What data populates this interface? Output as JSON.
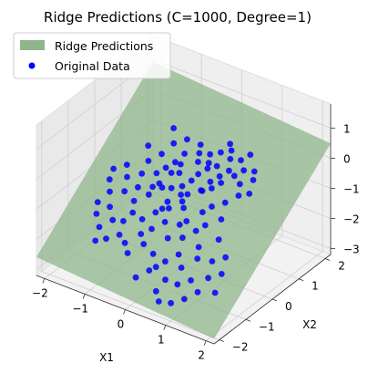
{
  "chart_data": {
    "type": "scatter",
    "title": "Ridge Predictions (C=1000, Degree=1)",
    "xlabel": "X1",
    "ylabel": "X2",
    "zlabel": "",
    "xlim": [
      -2.2,
      2.2
    ],
    "ylim": [
      -2.2,
      2.2
    ],
    "zlim": [
      -3.2,
      1.8
    ],
    "xticks": [
      -2,
      -1,
      0,
      1,
      2
    ],
    "yticks": [
      -2,
      -1,
      0,
      1,
      2
    ],
    "zticks": [
      -3,
      -2,
      -1,
      0,
      1
    ],
    "xtick_labels": [
      "−2",
      "−1",
      "0",
      "1",
      "2"
    ],
    "ytick_labels": [
      "−2",
      "−1",
      "0",
      "1",
      "2"
    ],
    "ztick_labels": [
      "−3",
      "−2",
      "−1",
      "0",
      "1"
    ],
    "grid": true,
    "legend_position": "top-left",
    "legend": [
      {
        "label": "Ridge Predictions",
        "kind": "surface",
        "color": "#8fb58c"
      },
      {
        "label": "Original Data",
        "kind": "point",
        "color": "#0000ff"
      }
    ],
    "surface": {
      "name": "Ridge Predictions",
      "x_range": [
        -2.2,
        2.2
      ],
      "y_range": [
        -2.2,
        2.2
      ],
      "intercept": -1.05,
      "coef_x1": -0.1,
      "coef_x2": 0.8,
      "color": "#8fb58c"
    },
    "series": [
      {
        "name": "Original Data",
        "color": "#0000ff",
        "points": [
          [
            -0.6,
            -0.4,
            -0.9
          ],
          [
            -0.4,
            -0.2,
            -0.7
          ],
          [
            -0.2,
            -0.5,
            -1.1
          ],
          [
            0.0,
            -0.1,
            -0.8
          ],
          [
            0.2,
            -0.3,
            -1.0
          ],
          [
            0.4,
            0.1,
            -0.6
          ],
          [
            -0.8,
            0.2,
            -0.7
          ],
          [
            -0.3,
            0.3,
            -0.5
          ],
          [
            0.1,
            0.4,
            -0.4
          ],
          [
            0.3,
            -0.6,
            -1.3
          ],
          [
            -0.5,
            -0.8,
            -1.4
          ],
          [
            0.6,
            -0.2,
            -1.0
          ],
          [
            -0.7,
            -0.1,
            -0.9
          ],
          [
            -0.1,
            0.1,
            -0.7
          ],
          [
            0.5,
            0.3,
            -0.6
          ],
          [
            -0.9,
            -0.5,
            -1.2
          ],
          [
            0.2,
            0.6,
            -0.3
          ],
          [
            -0.2,
            -0.9,
            -1.5
          ],
          [
            0.7,
            0.0,
            -0.9
          ],
          [
            -0.4,
            0.5,
            -0.4
          ],
          [
            0.0,
            -0.7,
            -1.3
          ],
          [
            -0.6,
            0.0,
            -0.8
          ],
          [
            0.3,
            0.2,
            -0.7
          ],
          [
            -1.0,
            -0.2,
            -1.0
          ],
          [
            0.8,
            -0.4,
            -1.2
          ],
          [
            -0.3,
            -0.6,
            -1.2
          ],
          [
            0.1,
            -0.2,
            -0.9
          ],
          [
            0.4,
            -0.5,
            -1.2
          ],
          [
            -0.8,
            -0.7,
            -1.4
          ],
          [
            -0.1,
            0.7,
            -0.3
          ],
          [
            0.6,
            0.5,
            -0.5
          ],
          [
            -0.5,
            0.3,
            -0.6
          ],
          [
            0.2,
            -0.9,
            -1.6
          ],
          [
            -0.7,
            0.4,
            -0.6
          ],
          [
            0.9,
            0.2,
            -0.8
          ],
          [
            -1.1,
            0.1,
            -0.8
          ],
          [
            0.0,
            0.3,
            -0.6
          ],
          [
            -0.2,
            -0.3,
            -1.0
          ],
          [
            0.5,
            -0.8,
            -1.5
          ],
          [
            -0.9,
            -0.9,
            -1.6
          ],
          [
            0.3,
            0.8,
            -0.3
          ],
          [
            -0.4,
            -1.0,
            -1.7
          ],
          [
            1.0,
            -0.1,
            -1.1
          ],
          [
            -0.6,
            0.6,
            -0.5
          ],
          [
            0.1,
            0.0,
            -0.8
          ],
          [
            -1.2,
            -0.4,
            -1.1
          ],
          [
            0.7,
            -0.6,
            -1.3
          ],
          [
            -0.3,
            0.0,
            -0.8
          ],
          [
            0.4,
            0.4,
            -0.5
          ],
          [
            -0.1,
            -0.4,
            -1.1
          ],
          [
            0.5,
            1.0,
            -0.1
          ],
          [
            0.8,
            0.7,
            -0.3
          ],
          [
            1.1,
            0.4,
            -0.6
          ],
          [
            0.2,
            1.1,
            -0.1
          ],
          [
            -0.2,
            0.9,
            -0.2
          ],
          [
            0.9,
            0.9,
            -0.2
          ],
          [
            0.6,
            0.8,
            -0.3
          ],
          [
            1.0,
            0.6,
            -0.4
          ],
          [
            0.4,
            1.2,
            0.0
          ],
          [
            0.0,
            1.0,
            -0.2
          ],
          [
            0.7,
            1.1,
            -0.1
          ],
          [
            1.2,
            0.8,
            -0.3
          ],
          [
            -0.3,
            1.1,
            -0.1
          ],
          [
            0.3,
            1.3,
            0.1
          ],
          [
            1.3,
            0.5,
            -0.5
          ],
          [
            0.5,
            0.6,
            -0.4
          ],
          [
            0.8,
            1.3,
            0.0
          ],
          [
            -0.5,
            0.8,
            -0.3
          ],
          [
            0.1,
            0.8,
            -0.3
          ],
          [
            1.1,
            1.0,
            -0.2
          ],
          [
            0.6,
            -1.1,
            -1.8
          ],
          [
            0.9,
            -0.8,
            -1.6
          ],
          [
            1.2,
            -0.5,
            -1.4
          ],
          [
            0.4,
            -1.3,
            -2.0
          ],
          [
            1.0,
            -1.0,
            -1.8
          ],
          [
            1.3,
            -0.9,
            -1.8
          ],
          [
            0.8,
            -1.3,
            -2.0
          ],
          [
            1.1,
            -1.4,
            -2.2
          ],
          [
            0.6,
            -1.6,
            -2.3
          ],
          [
            1.4,
            -1.2,
            -2.1
          ],
          [
            0.5,
            -1.8,
            -2.6
          ],
          [
            1.5,
            -0.7,
            -1.7
          ],
          [
            0.9,
            -1.6,
            -2.3
          ],
          [
            1.2,
            -1.8,
            -2.5
          ],
          [
            0.7,
            -2.0,
            -2.7
          ],
          [
            1.6,
            -1.0,
            -2.0
          ],
          [
            1.0,
            -2.0,
            -2.6
          ],
          [
            1.4,
            -1.6,
            -2.3
          ],
          [
            0.3,
            -1.5,
            -2.1
          ],
          [
            1.7,
            -1.4,
            -2.3
          ],
          [
            -1.3,
            -0.8,
            -1.4
          ],
          [
            -1.4,
            0.0,
            -1.0
          ],
          [
            -1.2,
            0.5,
            -0.7
          ],
          [
            -1.5,
            -0.5,
            -1.2
          ],
          [
            -1.6,
            0.3,
            -0.9
          ],
          [
            -1.3,
            -1.2,
            -1.8
          ],
          [
            -1.1,
            -1.0,
            -1.6
          ],
          [
            -1.7,
            -0.2,
            -1.1
          ],
          [
            -1.0,
            0.7,
            -0.5
          ],
          [
            -1.5,
            -1.0,
            -1.6
          ],
          [
            -0.8,
            -1.2,
            -1.8
          ],
          [
            -1.8,
            0.1,
            -1.0
          ],
          [
            -0.6,
            -1.3,
            -1.9
          ],
          [
            -1.2,
            -1.5,
            -2.0
          ],
          [
            -0.9,
            1.0,
            -0.3
          ],
          [
            -0.4,
            -1.5,
            -2.0
          ],
          [
            -1.6,
            -0.8,
            -1.4
          ],
          [
            -0.2,
            -1.2,
            -1.8
          ],
          [
            -1.0,
            -1.4,
            -1.9
          ],
          [
            -1.4,
            0.8,
            -0.5
          ],
          [
            0.1,
            -1.3,
            -1.9
          ],
          [
            -0.7,
            1.2,
            -0.2
          ],
          [
            0.2,
            -1.6,
            -2.2
          ],
          [
            -1.1,
            1.3,
            -0.1
          ],
          [
            0.0,
            -1.8,
            -2.4
          ]
        ]
      }
    ]
  }
}
